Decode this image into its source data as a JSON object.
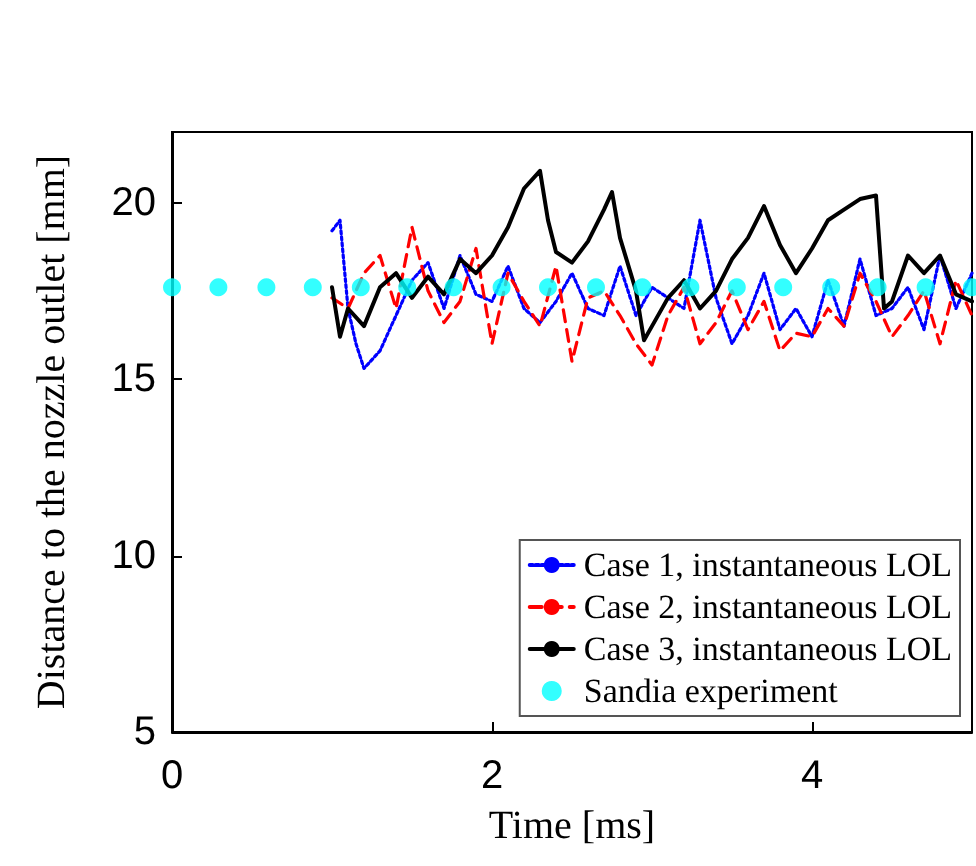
{
  "chart_data": {
    "type": "line",
    "xlabel": "Time [ms]",
    "ylabel": "Distance to the nozzle outlet [mm]",
    "xlim": [
      0,
      5
    ],
    "xticks": [
      0,
      2,
      4
    ],
    "ylim": [
      5,
      22
    ],
    "yticks": [
      5,
      10,
      15,
      20
    ],
    "grid": false,
    "legend": "bottom right",
    "series": [
      {
        "name": "Case 1, instantaneous LOL",
        "color": "#0000ff",
        "line_style": "dotted",
        "marker": "none",
        "x": [
          1.0,
          1.05,
          1.1,
          1.15,
          1.2,
          1.3,
          1.4,
          1.5,
          1.6,
          1.7,
          1.8,
          1.9,
          2.0,
          2.1,
          2.2,
          2.3,
          2.4,
          2.5,
          2.6,
          2.7,
          2.8,
          2.9,
          3.0,
          3.1,
          3.2,
          3.3,
          3.4,
          3.5,
          3.6,
          3.7,
          3.8,
          3.9,
          4.0,
          4.1,
          4.2,
          4.3,
          4.4,
          4.5,
          4.6,
          4.7,
          4.8,
          4.9,
          5.0
        ],
        "values": [
          19.2,
          19.5,
          17.0,
          16.0,
          15.3,
          15.8,
          16.8,
          17.8,
          18.3,
          17.0,
          18.5,
          17.4,
          17.2,
          18.2,
          17.0,
          16.6,
          17.2,
          18.0,
          17.0,
          16.8,
          18.2,
          16.8,
          17.6,
          17.3,
          17.0,
          19.5,
          17.3,
          16.0,
          16.8,
          18.0,
          16.4,
          17.0,
          16.2,
          17.8,
          16.5,
          18.4,
          16.8,
          17.0,
          17.6,
          16.4,
          18.5,
          17.0,
          18.0
        ]
      },
      {
        "name": "Case 2, instantaneous LOL",
        "color": "#ff0000",
        "line_style": "dashed",
        "marker": "none",
        "x": [
          1.0,
          1.1,
          1.2,
          1.3,
          1.4,
          1.5,
          1.6,
          1.7,
          1.8,
          1.9,
          2.0,
          2.1,
          2.2,
          2.3,
          2.4,
          2.5,
          2.6,
          2.7,
          2.8,
          2.9,
          3.0,
          3.1,
          3.2,
          3.3,
          3.4,
          3.5,
          3.6,
          3.7,
          3.8,
          3.9,
          4.0,
          4.1,
          4.2,
          4.3,
          4.4,
          4.5,
          4.6,
          4.7,
          4.8,
          4.9,
          5.0
        ],
        "values": [
          17.3,
          17.0,
          18.0,
          18.5,
          17.0,
          19.3,
          17.5,
          16.6,
          17.2,
          18.7,
          16.0,
          18.0,
          17.2,
          16.5,
          18.2,
          15.5,
          17.3,
          17.5,
          16.8,
          16.0,
          15.4,
          16.8,
          17.6,
          16.0,
          16.6,
          17.5,
          16.4,
          17.2,
          15.8,
          16.3,
          16.2,
          17.0,
          16.5,
          18.0,
          17.2,
          16.2,
          16.8,
          17.5,
          16.0,
          17.8,
          16.8
        ]
      },
      {
        "name": "Case 3, instantaneous LOL",
        "color": "#000000",
        "line_style": "solid",
        "marker": "none",
        "x": [
          1.0,
          1.05,
          1.1,
          1.2,
          1.3,
          1.4,
          1.5,
          1.6,
          1.7,
          1.8,
          1.9,
          2.0,
          2.1,
          2.2,
          2.3,
          2.35,
          2.4,
          2.5,
          2.6,
          2.7,
          2.75,
          2.8,
          2.9,
          2.95,
          3.0,
          3.1,
          3.2,
          3.3,
          3.4,
          3.5,
          3.6,
          3.7,
          3.8,
          3.9,
          4.0,
          4.1,
          4.2,
          4.3,
          4.4,
          4.45,
          4.5,
          4.6,
          4.7,
          4.8,
          4.9,
          5.0
        ],
        "values": [
          17.6,
          16.2,
          17.0,
          16.5,
          17.6,
          18.0,
          17.3,
          17.9,
          17.4,
          18.4,
          18.0,
          18.5,
          19.3,
          20.4,
          20.9,
          19.5,
          18.6,
          18.3,
          18.9,
          19.8,
          20.3,
          19.0,
          17.5,
          16.1,
          16.5,
          17.3,
          17.8,
          17.0,
          17.5,
          18.4,
          19.0,
          19.9,
          18.8,
          18.0,
          18.7,
          19.5,
          19.8,
          20.1,
          20.2,
          17.0,
          17.2,
          18.5,
          18.0,
          18.5,
          17.4,
          17.2
        ]
      },
      {
        "name": "Sandia experiment",
        "type": "scatter",
        "color": "#00ffff",
        "marker": "circle",
        "x": [
          0,
          0.29,
          0.59,
          0.88,
          1.18,
          1.47,
          1.76,
          2.06,
          2.35,
          2.65,
          2.94,
          3.24,
          3.53,
          3.82,
          4.12,
          4.41,
          4.71,
          5.0
        ],
        "values": [
          17.6,
          17.6,
          17.6,
          17.6,
          17.6,
          17.6,
          17.6,
          17.6,
          17.6,
          17.6,
          17.6,
          17.6,
          17.6,
          17.6,
          17.6,
          17.6,
          17.6,
          17.6
        ]
      }
    ]
  }
}
